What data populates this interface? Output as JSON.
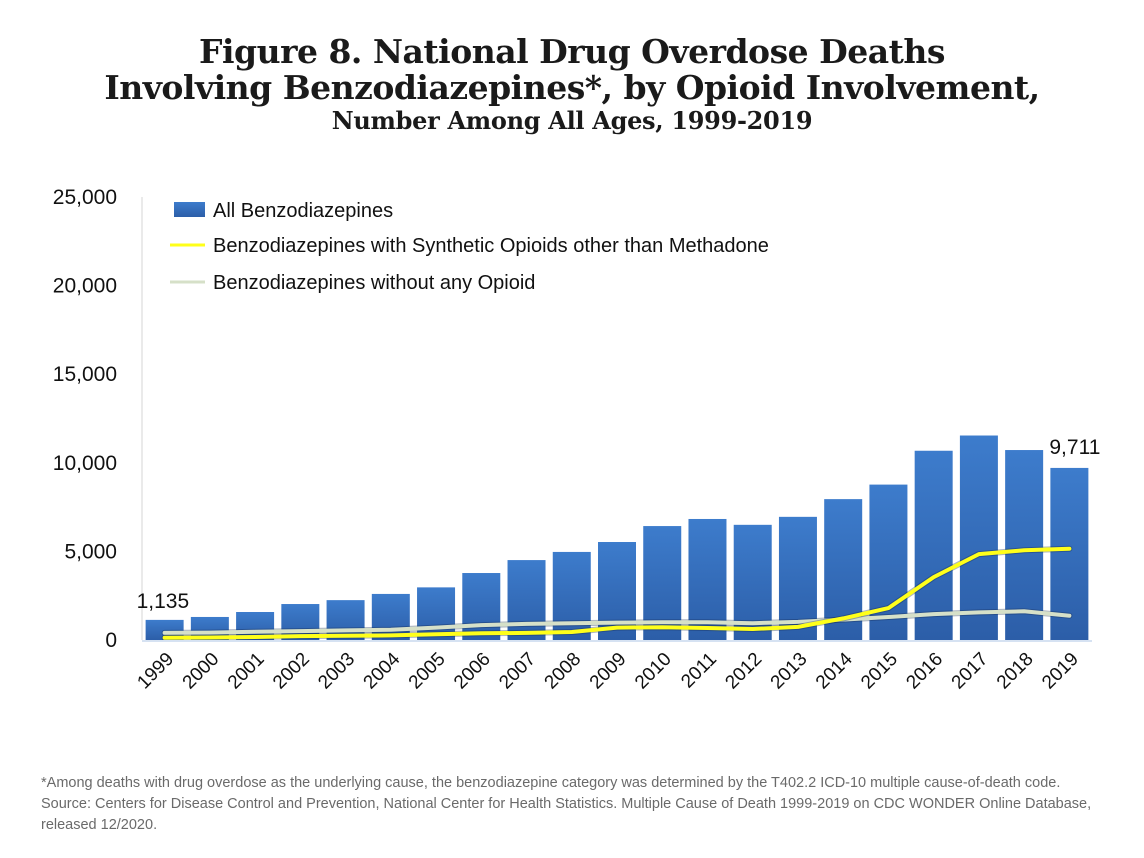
{
  "title": {
    "line1": "Figure 8. National Drug Overdose Deaths",
    "line2": "Involving Benzodiazepines*, by Opioid Involvement,",
    "line3": "Number Among All Ages, 1999-2019"
  },
  "footnote": "*Among deaths with drug overdose as the underlying cause, the benzodiazepine category was determined by the T402.2 ICD-10 multiple cause-of-death code. Source: Centers for Disease Control and Prevention, National Center for Health Statistics. Multiple Cause of Death 1999-2019 on CDC WONDER Online Database, released 12/2020.",
  "colors": {
    "bar": "#3a73c4",
    "bar_dark": "#2c5ea8",
    "synthetic_line": "#ffff1a",
    "no_opioid_line": "#d6e0c8",
    "axis": "#d9d9d9"
  },
  "chart_data": {
    "type": "bar",
    "title": "Figure 8. National Drug Overdose Deaths Involving Benzodiazepines*, by Opioid Involvement, Number Among All Ages, 1999-2019",
    "xlabel": "",
    "ylabel": "",
    "ylim": [
      0,
      25000
    ],
    "yticks": [
      0,
      5000,
      10000,
      15000,
      20000,
      25000
    ],
    "ytick_labels": [
      "0",
      "5,000",
      "10,000",
      "15,000",
      "20,000",
      "25,000"
    ],
    "grid": false,
    "legend_position": "top-left",
    "categories": [
      "1999",
      "2000",
      "2001",
      "2002",
      "2003",
      "2004",
      "2005",
      "2006",
      "2007",
      "2008",
      "2009",
      "2010",
      "2011",
      "2012",
      "2013",
      "2014",
      "2015",
      "2016",
      "2017",
      "2018",
      "2019"
    ],
    "series": [
      {
        "name": "All Benzodiazepines",
        "type": "bar",
        "values": [
          1135,
          1300,
          1580,
          2030,
          2250,
          2600,
          2970,
          3780,
          4510,
          4970,
          5530,
          6430,
          6830,
          6500,
          6950,
          7950,
          8770,
          10680,
          11540,
          10720,
          9711
        ]
      },
      {
        "name": "Benzodiazepines with Synthetic Opioids other than Methadone",
        "type": "line",
        "values": [
          130,
          140,
          170,
          220,
          240,
          260,
          330,
          380,
          400,
          450,
          700,
          720,
          680,
          620,
          740,
          1220,
          1800,
          3550,
          4850,
          5060,
          5150
        ]
      },
      {
        "name": "Benzodiazepines without any Opioid",
        "type": "line",
        "values": [
          400,
          420,
          460,
          500,
          540,
          580,
          700,
          840,
          910,
          950,
          980,
          1000,
          1000,
          950,
          1020,
          1150,
          1300,
          1460,
          1560,
          1620,
          1370
        ]
      }
    ],
    "data_labels": [
      {
        "category": "1999",
        "series": "All Benzodiazepines",
        "text": "1,135"
      },
      {
        "category": "2019",
        "series": "All Benzodiazepines",
        "text": "9,711"
      }
    ]
  }
}
